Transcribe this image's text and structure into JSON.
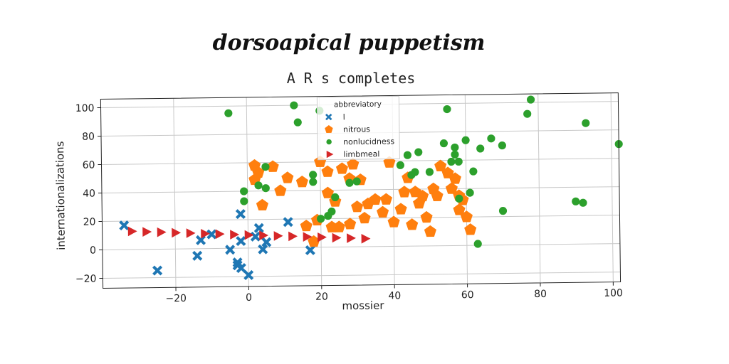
{
  "chart_data": {
    "type": "scatter",
    "suptitle": "dorsoapical puppetism",
    "title": "A R s completes",
    "xlabel": "mossier",
    "ylabel": "internationalizations",
    "xlim": [
      -40,
      102
    ],
    "ylim": [
      -27,
      106
    ],
    "xticks": [
      -20,
      0,
      20,
      40,
      60,
      80,
      100
    ],
    "yticks": [
      -20,
      0,
      20,
      40,
      60,
      80,
      100
    ],
    "xtick_labels": [
      "−20",
      "0",
      "20",
      "40",
      "60",
      "80",
      "100"
    ],
    "ytick_labels": [
      "−20",
      "0",
      "20",
      "40",
      "60",
      "80",
      "100"
    ],
    "grid": true,
    "legend": {
      "title": "abbreviatory",
      "placement": "top-center"
    },
    "series": [
      {
        "name": "l",
        "marker": "x",
        "color": "#1f77b4",
        "points": [
          [
            -34,
            17
          ],
          [
            -25,
            -15
          ],
          [
            -14,
            -5
          ],
          [
            -13,
            6
          ],
          [
            -10,
            10
          ],
          [
            -5,
            -1
          ],
          [
            -3,
            -12
          ],
          [
            -3,
            -10
          ],
          [
            -2,
            -14
          ],
          [
            -2,
            5
          ],
          [
            -2,
            24
          ],
          [
            0,
            -19
          ],
          [
            2,
            8
          ],
          [
            3,
            14
          ],
          [
            4,
            -1
          ],
          [
            5,
            4
          ],
          [
            11,
            18
          ],
          [
            17,
            -2
          ]
        ]
      },
      {
        "name": "nitrous",
        "marker": "pentagon",
        "color": "#ff7f0e",
        "points": [
          [
            2,
            58
          ],
          [
            2,
            48
          ],
          [
            3,
            53
          ],
          [
            4,
            30
          ],
          [
            7,
            57
          ],
          [
            9,
            40
          ],
          [
            11,
            49
          ],
          [
            15,
            46
          ],
          [
            16,
            15
          ],
          [
            18,
            4
          ],
          [
            19,
            19
          ],
          [
            20,
            60
          ],
          [
            22,
            53
          ],
          [
            22,
            38
          ],
          [
            23,
            14
          ],
          [
            24,
            32
          ],
          [
            25,
            14
          ],
          [
            26,
            55
          ],
          [
            28,
            48
          ],
          [
            28,
            16
          ],
          [
            29,
            58
          ],
          [
            30,
            28
          ],
          [
            31,
            47
          ],
          [
            32,
            20
          ],
          [
            33,
            30
          ],
          [
            35,
            33
          ],
          [
            37,
            24
          ],
          [
            38,
            33
          ],
          [
            39,
            59
          ],
          [
            40,
            17
          ],
          [
            42,
            26
          ],
          [
            43,
            38
          ],
          [
            44,
            48
          ],
          [
            45,
            15
          ],
          [
            46,
            38
          ],
          [
            47,
            30
          ],
          [
            48,
            35
          ],
          [
            49,
            20
          ],
          [
            50,
            10
          ],
          [
            51,
            40
          ],
          [
            52,
            35
          ],
          [
            53,
            56
          ],
          [
            55,
            51
          ],
          [
            56,
            40
          ],
          [
            57,
            47
          ],
          [
            58,
            25
          ],
          [
            58,
            35
          ],
          [
            59,
            32
          ],
          [
            60,
            20
          ],
          [
            61,
            11
          ]
        ]
      },
      {
        "name": "nonlucidness",
        "marker": "circle",
        "color": "#2ca02c",
        "points": [
          [
            -5,
            95
          ],
          [
            -1,
            33
          ],
          [
            -1,
            40
          ],
          [
            3,
            44
          ],
          [
            5,
            57
          ],
          [
            5,
            42
          ],
          [
            13,
            100
          ],
          [
            14,
            88
          ],
          [
            18,
            51
          ],
          [
            18,
            46
          ],
          [
            20,
            96
          ],
          [
            20,
            20
          ],
          [
            22,
            22
          ],
          [
            23,
            25
          ],
          [
            24,
            35
          ],
          [
            28,
            45
          ],
          [
            30,
            46
          ],
          [
            42,
            57
          ],
          [
            44,
            64
          ],
          [
            45,
            50
          ],
          [
            46,
            52
          ],
          [
            47,
            66
          ],
          [
            50,
            52
          ],
          [
            54,
            72
          ],
          [
            55,
            96
          ],
          [
            56,
            59
          ],
          [
            57,
            69
          ],
          [
            57,
            64
          ],
          [
            58,
            33
          ],
          [
            58,
            59
          ],
          [
            60,
            74
          ],
          [
            61,
            37
          ],
          [
            62,
            52
          ],
          [
            63,
            1
          ],
          [
            64,
            68
          ],
          [
            67,
            75
          ],
          [
            70,
            70
          ],
          [
            70,
            24
          ],
          [
            77,
            92
          ],
          [
            78,
            102
          ],
          [
            90,
            30
          ],
          [
            92,
            29
          ],
          [
            93,
            85
          ],
          [
            102,
            70
          ]
        ]
      },
      {
        "name": "limbmeal",
        "marker": "triangle-right",
        "color": "#d62728",
        "points": [
          [
            -32,
            12.8
          ],
          [
            -28,
            12.3
          ],
          [
            -24,
            11.9
          ],
          [
            -20,
            11.4
          ],
          [
            -16,
            11.0
          ],
          [
            -12,
            10.5
          ],
          [
            -8,
            10.1
          ],
          [
            -4,
            9.6
          ],
          [
            0,
            9.2
          ],
          [
            4,
            8.8
          ],
          [
            8,
            8.3
          ],
          [
            12,
            7.9
          ],
          [
            16,
            7.4
          ],
          [
            20,
            7.0
          ],
          [
            24,
            6.5
          ],
          [
            28,
            6.1
          ],
          [
            32,
            5.6
          ]
        ]
      }
    ]
  }
}
